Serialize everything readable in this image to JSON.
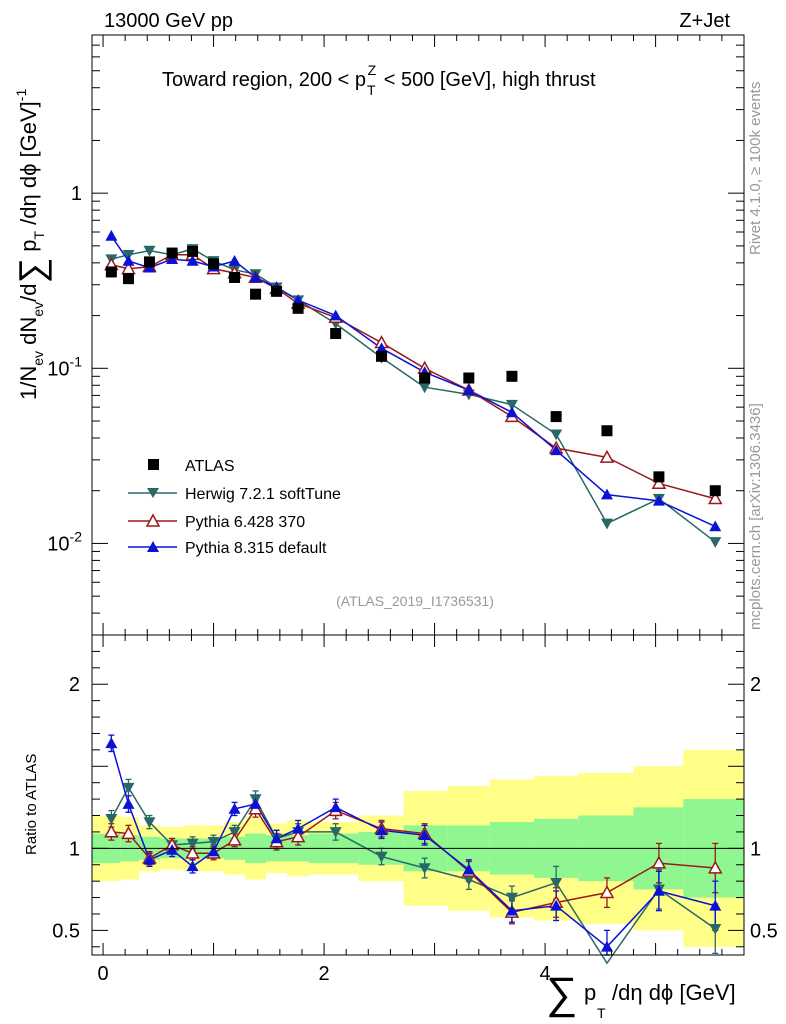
{
  "chart_data": {
    "type": "scatter",
    "title": "Toward region, 200 < p_T^Z < 500 [GeV], high thrust",
    "top_left_label": "13000 GeV pp",
    "top_right_label": "Z+Jet",
    "analysis_tag": "(ATLAS_2019_I1736531)",
    "side_label_upper": "Rivet 4.1.0, ≥ 100k events",
    "side_label_lower": "mcplots.cern.ch [arXiv:1306.3436]",
    "xlabel": "∑ p_T /dη dϕ [GeV]",
    "ylabel": "1/N_ev dN_ev/d ∑ p_T /dη dϕ [GeV]^-1",
    "ratio_ylabel": "Ratio to ATLAS",
    "xlim": [
      -0.1,
      5.8
    ],
    "ylim": [
      0.003,
      8
    ],
    "yscale": "log",
    "ratio_ylim": [
      0.35,
      2.3
    ],
    "x_ticks": [
      0,
      2,
      4
    ],
    "y_ticks": [
      {
        "v": 1,
        "t": "1"
      },
      {
        "v": 0.1,
        "t": "10^-1"
      },
      {
        "v": 0.01,
        "t": "10^-2"
      }
    ],
    "ratio_ticks": [
      {
        "v": 2,
        "t": "2"
      },
      {
        "v": 1,
        "t": "1"
      },
      {
        "v": 0.5,
        "t": "0.5"
      }
    ],
    "x": [
      0.075,
      0.23,
      0.42,
      0.625,
      0.81,
      1.0,
      1.19,
      1.38,
      1.57,
      1.765,
      2.105,
      2.52,
      2.91,
      3.31,
      3.7,
      4.1,
      4.56,
      5.03,
      5.54
    ],
    "data": {
      "name": "ATLAS",
      "values": [
        0.355,
        0.325,
        0.405,
        0.455,
        0.465,
        0.395,
        0.33,
        0.265,
        0.275,
        0.22,
        0.158,
        0.117,
        0.088,
        0.088,
        0.09,
        0.053,
        0.044,
        0.024,
        0.02
      ],
      "band_inner": [
        [
          -0.1,
          0.155
        ],
        [
          0.155,
          0.325
        ],
        [
          0.325,
          0.52
        ],
        [
          0.52,
          0.72
        ],
        [
          0.72,
          0.905
        ],
        [
          0.905,
          1.095
        ],
        [
          1.095,
          1.285
        ],
        [
          1.285,
          1.475
        ],
        [
          1.475,
          1.665
        ],
        [
          1.665,
          1.86
        ],
        [
          1.86,
          2.31
        ],
        [
          2.31,
          2.72
        ],
        [
          2.72,
          3.12
        ],
        [
          3.12,
          3.5
        ],
        [
          3.5,
          3.9
        ],
        [
          3.9,
          4.3
        ],
        [
          4.3,
          4.8
        ],
        [
          4.8,
          5.25
        ],
        [
          5.25,
          5.8
        ]
      ],
      "band_inner_half": [
        0.09,
        0.08,
        0.07,
        0.06,
        0.06,
        0.06,
        0.07,
        0.09,
        0.08,
        0.08,
        0.09,
        0.1,
        0.14,
        0.14,
        0.16,
        0.18,
        0.2,
        0.25,
        0.3
      ],
      "band_outer_half": [
        0.2,
        0.19,
        0.14,
        0.13,
        0.14,
        0.14,
        0.16,
        0.19,
        0.15,
        0.17,
        0.16,
        0.2,
        0.35,
        0.38,
        0.42,
        0.44,
        0.46,
        0.5,
        0.6
      ]
    },
    "series": [
      {
        "name": "Herwig 7.2.1 softTune",
        "color": "#2a6868",
        "marker": "triangle-down",
        "values": [
          0.42,
          0.445,
          0.47,
          0.445,
          0.48,
          0.41,
          0.365,
          0.345,
          0.29,
          0.245,
          0.18,
          0.115,
          0.078,
          0.071,
          0.062,
          0.042,
          0.013,
          0.018,
          0.0102
        ],
        "ratio": [
          1.18,
          1.37,
          1.16,
          1.02,
          1.03,
          1.04,
          1.1,
          1.3,
          1.06,
          1.1,
          1.1,
          0.95,
          0.88,
          0.81,
          0.7,
          0.79,
          0.3,
          0.75,
          0.51
        ],
        "ratio_err": [
          0.05,
          0.05,
          0.04,
          0.04,
          0.04,
          0.04,
          0.04,
          0.05,
          0.05,
          0.05,
          0.05,
          0.05,
          0.06,
          0.06,
          0.07,
          0.1,
          0.1,
          0.12,
          0.15
        ]
      },
      {
        "name": "Pythia 6.428 370",
        "color": "#9a1a1a",
        "marker": "triangle-open",
        "values": [
          0.39,
          0.37,
          0.38,
          0.445,
          0.445,
          0.37,
          0.35,
          0.33,
          0.285,
          0.235,
          0.195,
          0.14,
          0.1,
          0.075,
          0.053,
          0.035,
          0.031,
          0.022,
          0.018
        ],
        "ratio": [
          1.1,
          1.09,
          0.94,
          1.02,
          0.97,
          0.97,
          1.05,
          1.24,
          1.04,
          1.07,
          1.23,
          1.12,
          1.09,
          0.86,
          0.61,
          0.67,
          0.73,
          0.91,
          0.88
        ],
        "ratio_err": [
          0.05,
          0.05,
          0.04,
          0.04,
          0.04,
          0.04,
          0.04,
          0.05,
          0.05,
          0.05,
          0.05,
          0.05,
          0.06,
          0.06,
          0.07,
          0.09,
          0.09,
          0.12,
          0.15
        ]
      },
      {
        "name": "Pythia 8.315 default",
        "color": "#0b12d6",
        "marker": "triangle-up",
        "values": [
          0.57,
          0.41,
          0.375,
          0.42,
          0.41,
          0.38,
          0.41,
          0.33,
          0.29,
          0.245,
          0.2,
          0.13,
          0.095,
          0.075,
          0.056,
          0.034,
          0.019,
          0.0175,
          0.0125
        ],
        "ratio": [
          1.64,
          1.27,
          0.93,
          0.99,
          0.89,
          0.98,
          1.24,
          1.27,
          1.06,
          1.12,
          1.25,
          1.11,
          1.08,
          0.87,
          0.62,
          0.65,
          0.4,
          0.74,
          0.65
        ],
        "ratio_err": [
          0.05,
          0.05,
          0.04,
          0.04,
          0.04,
          0.04,
          0.04,
          0.05,
          0.05,
          0.05,
          0.05,
          0.05,
          0.06,
          0.06,
          0.07,
          0.09,
          0.1,
          0.12,
          0.15
        ]
      }
    ]
  }
}
